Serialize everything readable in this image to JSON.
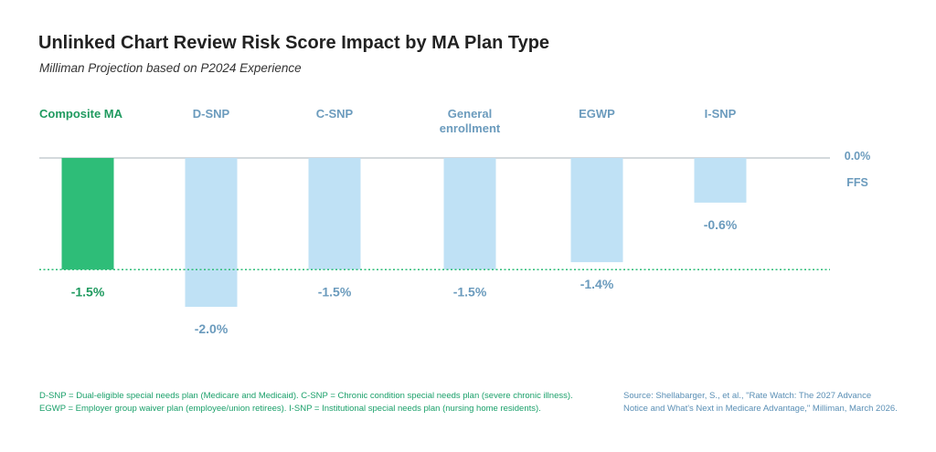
{
  "title": "Unlinked Chart Review Risk Score Impact by MA Plan Type",
  "subtitle": "Milliman Projection based on P2024 Experience",
  "chart_data": {
    "type": "bar",
    "categories": [
      "Composite MA",
      "D-SNP",
      "C-SNP",
      "General enrollment",
      "EGWP",
      "I-SNP"
    ],
    "values": [
      -1.5,
      -2.0,
      -1.5,
      -1.5,
      -1.4,
      -0.6
    ],
    "value_labels": [
      "-1.5%",
      "-2.0%",
      "-1.5%",
      "-1.5%",
      "-1.4%",
      "-0.6%"
    ],
    "baseline": {
      "value": 0.0,
      "label": "0.0%",
      "sublabel": "FFS"
    },
    "reference_line": {
      "value": -1.5,
      "style": "dotted",
      "color": "#2ebd78"
    },
    "highlight_category": "Composite MA",
    "ylim": [
      -2.0,
      0.0
    ],
    "grid": false,
    "colors": {
      "highlight": "#2ebd78",
      "highlight_text": "#1f9a5f",
      "bar": "#bfe1f5",
      "label_text": "#6b9bbd",
      "baseline": "#a9b3ba"
    }
  },
  "footnotes": {
    "definitions": "D-SNP = Dual-eligible special needs plan (Medicare and Medicaid). C-SNP = Chronic condition special needs plan (severe chronic illness). EGWP = Employer group waiver plan (employee/union retirees). I-SNP = Institutional special needs plan (nursing home residents).",
    "source": "Source: Shellabarger, S., et al., \"Rate Watch: The 2027 Advance Notice and What's Next in Medicare Advantage,\" Milliman, March 2026."
  }
}
